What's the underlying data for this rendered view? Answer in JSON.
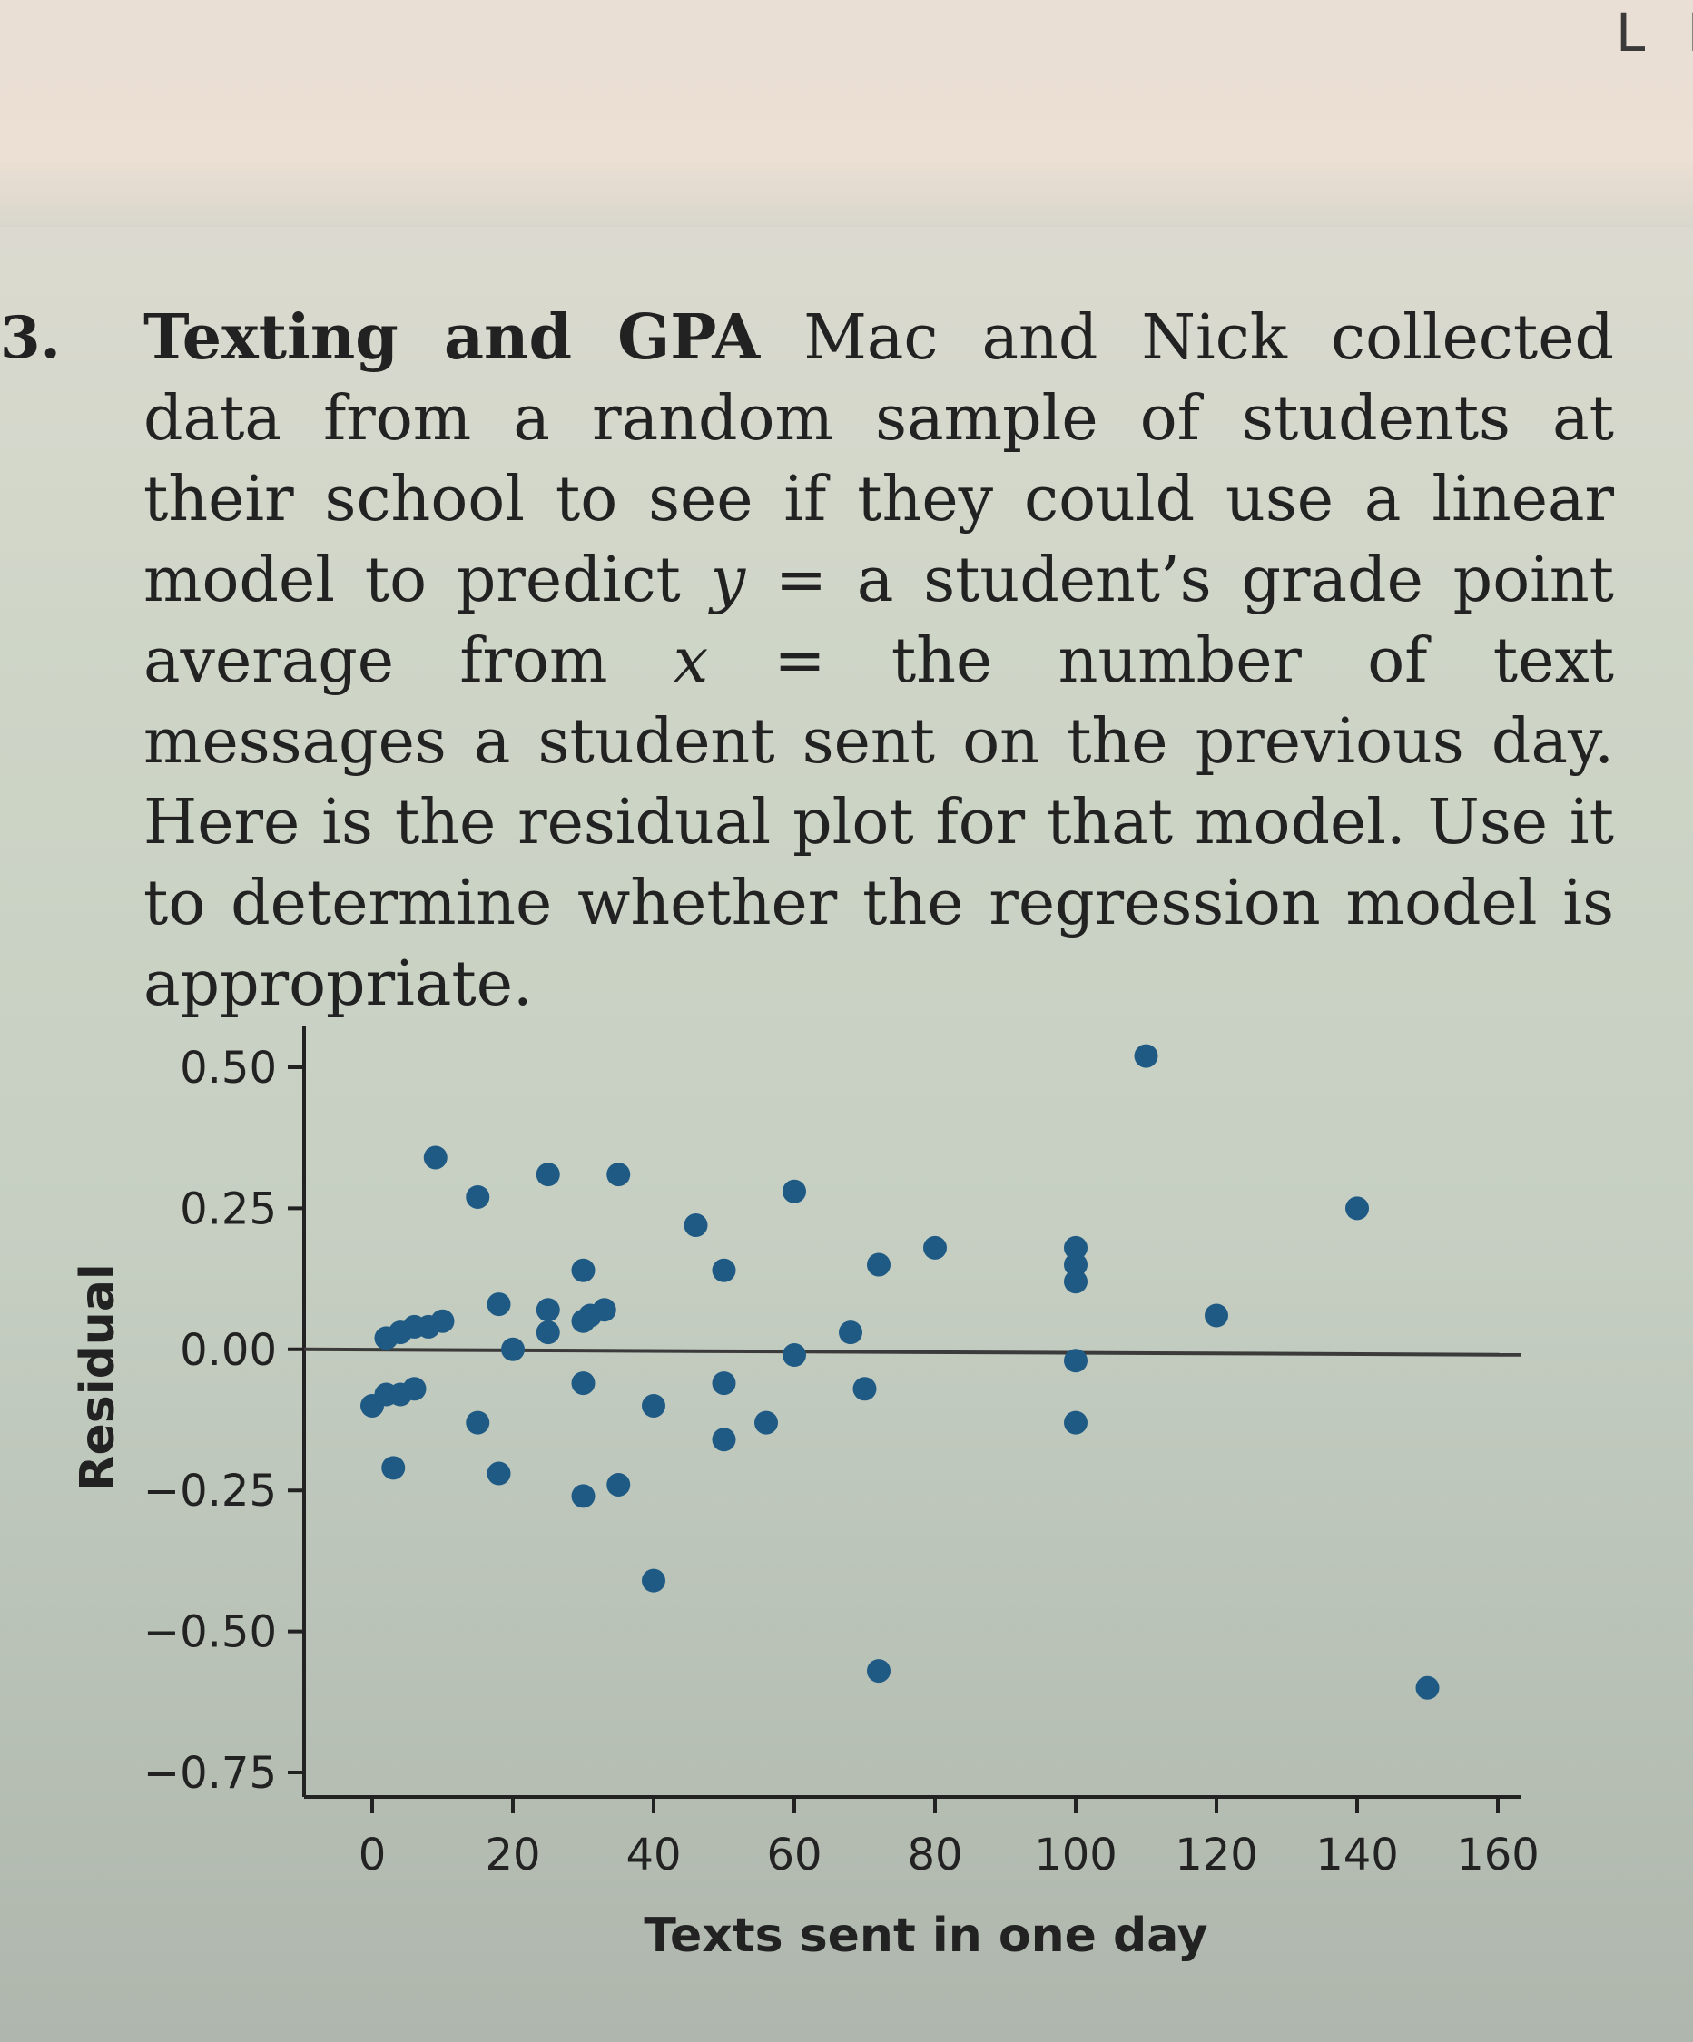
{
  "page": {
    "corner_text": "L E"
  },
  "problem": {
    "number": "3.",
    "title": "Texting and GPA",
    "text_1": " Mac and Nick collected data from a random sample of students at their school to see if they could use a linear model to predict ",
    "var_y": "y",
    "text_2": " = a student’s grade point average from ",
    "var_x": "x",
    "text_3": " = the number of text messages a student sent on the previous day. Here is the residual plot for that model. Use it to determine whether the regression model is appropriate."
  },
  "chart_data": {
    "type": "scatter",
    "title": "",
    "xlabel": "Texts sent in one day",
    "ylabel": "Residual",
    "xlim": [
      -10,
      160
    ],
    "ylim": [
      -0.75,
      0.55
    ],
    "xticks": [
      0,
      20,
      40,
      60,
      80,
      100,
      120,
      140,
      160
    ],
    "xtick_labels": [
      "0",
      "20",
      "40",
      "60",
      "80",
      "100",
      "120",
      "140",
      "160"
    ],
    "yticks": [
      0.5,
      0.25,
      0.0,
      -0.25,
      -0.5,
      -0.75
    ],
    "ytick_labels": [
      "0.50",
      "0.25",
      "0.00",
      "−0.25",
      "−0.50",
      "−0.75"
    ],
    "reference_line_y": 0,
    "grid": false,
    "point_color": "#1f5a85",
    "points": [
      {
        "x": 0,
        "y": -0.1
      },
      {
        "x": 2,
        "y": -0.08
      },
      {
        "x": 3,
        "y": -0.21
      },
      {
        "x": 4,
        "y": -0.08
      },
      {
        "x": 6,
        "y": -0.07
      },
      {
        "x": 2,
        "y": 0.02
      },
      {
        "x": 4,
        "y": 0.03
      },
      {
        "x": 6,
        "y": 0.04
      },
      {
        "x": 8,
        "y": 0.04
      },
      {
        "x": 10,
        "y": 0.05
      },
      {
        "x": 9,
        "y": 0.34
      },
      {
        "x": 15,
        "y": 0.27
      },
      {
        "x": 15,
        "y": -0.13
      },
      {
        "x": 18,
        "y": 0.08
      },
      {
        "x": 18,
        "y": -0.22
      },
      {
        "x": 20,
        "y": 0.0
      },
      {
        "x": 25,
        "y": 0.31
      },
      {
        "x": 25,
        "y": 0.07
      },
      {
        "x": 25,
        "y": 0.03
      },
      {
        "x": 30,
        "y": 0.14
      },
      {
        "x": 30,
        "y": 0.05
      },
      {
        "x": 31,
        "y": 0.06
      },
      {
        "x": 33,
        "y": 0.07
      },
      {
        "x": 30,
        "y": -0.06
      },
      {
        "x": 30,
        "y": -0.26
      },
      {
        "x": 35,
        "y": 0.31
      },
      {
        "x": 35,
        "y": -0.24
      },
      {
        "x": 40,
        "y": -0.1
      },
      {
        "x": 40,
        "y": -0.41
      },
      {
        "x": 46,
        "y": 0.22
      },
      {
        "x": 50,
        "y": 0.14
      },
      {
        "x": 50,
        "y": -0.06
      },
      {
        "x": 50,
        "y": -0.16
      },
      {
        "x": 56,
        "y": -0.13
      },
      {
        "x": 60,
        "y": 0.28
      },
      {
        "x": 60,
        "y": -0.01
      },
      {
        "x": 68,
        "y": 0.03
      },
      {
        "x": 70,
        "y": -0.07
      },
      {
        "x": 72,
        "y": 0.15
      },
      {
        "x": 72,
        "y": -0.57
      },
      {
        "x": 80,
        "y": 0.18
      },
      {
        "x": 100,
        "y": 0.18
      },
      {
        "x": 100,
        "y": 0.15
      },
      {
        "x": 100,
        "y": 0.12
      },
      {
        "x": 100,
        "y": -0.02
      },
      {
        "x": 100,
        "y": -0.13
      },
      {
        "x": 110,
        "y": 0.52
      },
      {
        "x": 120,
        "y": 0.06
      },
      {
        "x": 140,
        "y": 0.25
      },
      {
        "x": 150,
        "y": -0.6
      }
    ]
  }
}
